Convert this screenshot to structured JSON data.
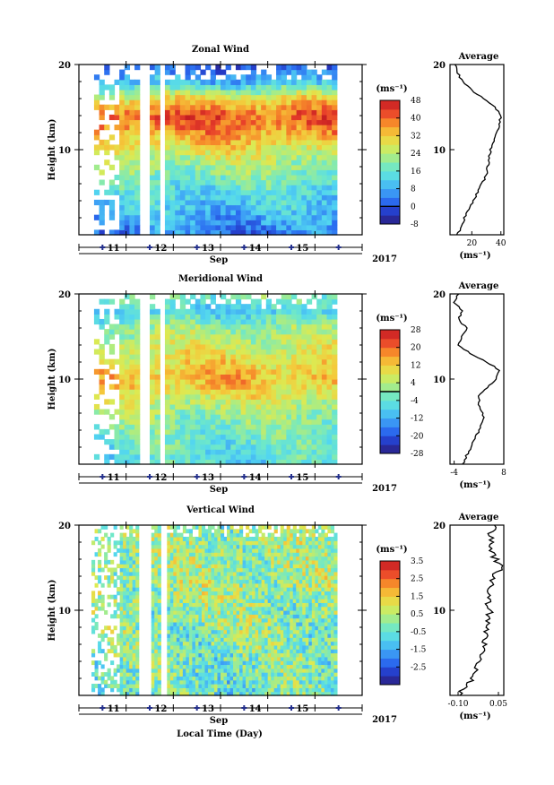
{
  "figure": {
    "xlabel": "Local Time (Day)",
    "month_label": "Sep",
    "year_label": "2017",
    "avg_title": "Average",
    "unit": "(ms⁻¹)",
    "height_label": "Height (km)"
  },
  "chart_data": [
    {
      "type": "heatmap",
      "title": "Zonal Wind",
      "ylabel": "Height (km)",
      "x_ticks": [
        "11",
        "12",
        "13",
        "14",
        "15"
      ],
      "x_tick_values": [
        11,
        12,
        13,
        14,
        15
      ],
      "xlim": [
        10,
        16
      ],
      "ylim": [
        0,
        20
      ],
      "y_ticks": [
        10,
        20
      ],
      "colorbar": {
        "unit": "(ms⁻¹)",
        "ticks": [
          48,
          40,
          32,
          24,
          16,
          8,
          0,
          -8
        ],
        "range": [
          -8,
          48
        ],
        "zero_contour": true
      },
      "field_profile": {
        "heights": [
          0,
          2,
          4,
          6,
          8,
          10,
          12,
          14,
          16,
          18,
          20
        ],
        "values": [
          4,
          8,
          12,
          16,
          22,
          28,
          36,
          42,
          30,
          10,
          0
        ]
      },
      "average_profile": {
        "title": "Average",
        "xlabel": "(ms⁻¹)",
        "x_ticks": [
          20,
          40
        ],
        "xlim": [
          5,
          42
        ],
        "heights": [
          0,
          1,
          2,
          3,
          4,
          5,
          6,
          7,
          8,
          9,
          10,
          11,
          12,
          13,
          14,
          15,
          16,
          17,
          18,
          19,
          20
        ],
        "values": [
          10,
          13,
          15,
          18,
          21,
          24,
          27,
          30,
          31,
          32,
          33,
          35,
          37,
          39,
          40,
          36,
          28,
          20,
          14,
          10,
          9
        ]
      }
    },
    {
      "type": "heatmap",
      "title": "Meridional Wind",
      "ylabel": "Height (km)",
      "x_ticks": [
        "11",
        "12",
        "13",
        "14",
        "15"
      ],
      "x_tick_values": [
        11,
        12,
        13,
        14,
        15
      ],
      "xlim": [
        10,
        16
      ],
      "ylim": [
        0,
        20
      ],
      "y_ticks": [
        10,
        20
      ],
      "colorbar": {
        "unit": "(ms⁻¹)",
        "ticks": [
          28,
          20,
          12,
          4,
          -4,
          -12,
          -20,
          -28
        ],
        "range": [
          -28,
          28
        ],
        "zero_contour": true
      },
      "field_profile": {
        "heights": [
          0,
          2,
          4,
          6,
          8,
          10,
          12,
          14,
          16,
          18,
          20
        ],
        "values": [
          -6,
          -4,
          -2,
          2,
          8,
          14,
          10,
          6,
          2,
          -8,
          0
        ]
      },
      "average_profile": {
        "title": "Average",
        "xlabel": "(ms⁻¹)",
        "x_ticks": [
          -4,
          8
        ],
        "xlim": [
          -5,
          8
        ],
        "heights": [
          0,
          1,
          2,
          3,
          4,
          5,
          6,
          7,
          8,
          9,
          10,
          11,
          12,
          13,
          14,
          15,
          16,
          17,
          18,
          19,
          20
        ],
        "values": [
          -2,
          -1,
          0,
          1,
          2,
          3,
          3,
          2,
          2,
          4,
          6,
          7,
          4,
          0,
          -3,
          -2,
          -1,
          -3,
          -2,
          -4,
          -3
        ]
      }
    },
    {
      "type": "heatmap",
      "title": "Vertical Wind",
      "ylabel": "Height (km)",
      "x_ticks": [
        "11",
        "12",
        "13",
        "14",
        "15"
      ],
      "x_tick_values": [
        11,
        12,
        13,
        14,
        15
      ],
      "xlim": [
        10,
        16
      ],
      "ylim": [
        0,
        20
      ],
      "y_ticks": [
        10,
        20
      ],
      "colorbar": {
        "unit": "(ms⁻¹)",
        "ticks": [
          3.5,
          2.5,
          1.5,
          0.5,
          -0.5,
          -1.5,
          -2.5
        ],
        "range": [
          -3.5,
          3.5
        ],
        "zero_contour": false
      },
      "field_profile": {
        "heights": [
          0,
          2,
          4,
          6,
          8,
          10,
          12,
          14,
          16,
          18,
          20
        ],
        "values": [
          -0.4,
          -0.3,
          -0.2,
          -0.1,
          0.0,
          0.1,
          0.2,
          0.3,
          0.2,
          0.2,
          0.1
        ]
      },
      "average_profile": {
        "title": "Average",
        "xlabel": "(ms⁻¹)",
        "x_ticks": [
          -0.1,
          0.05
        ],
        "x_tick_labels": [
          "-0.10",
          "0.05"
        ],
        "xlim": [
          -0.13,
          0.07
        ],
        "heights": [
          0,
          1,
          2,
          3,
          4,
          5,
          6,
          7,
          8,
          9,
          10,
          11,
          12,
          13,
          14,
          15,
          16,
          17,
          18,
          19,
          20
        ],
        "values": [
          -0.1,
          -0.07,
          -0.05,
          -0.03,
          -0.02,
          -0.01,
          0.0,
          0.0,
          0.01,
          0.01,
          0.02,
          0.01,
          0.01,
          0.02,
          0.03,
          0.06,
          0.04,
          0.02,
          0.03,
          0.02,
          0.04
        ]
      }
    }
  ]
}
